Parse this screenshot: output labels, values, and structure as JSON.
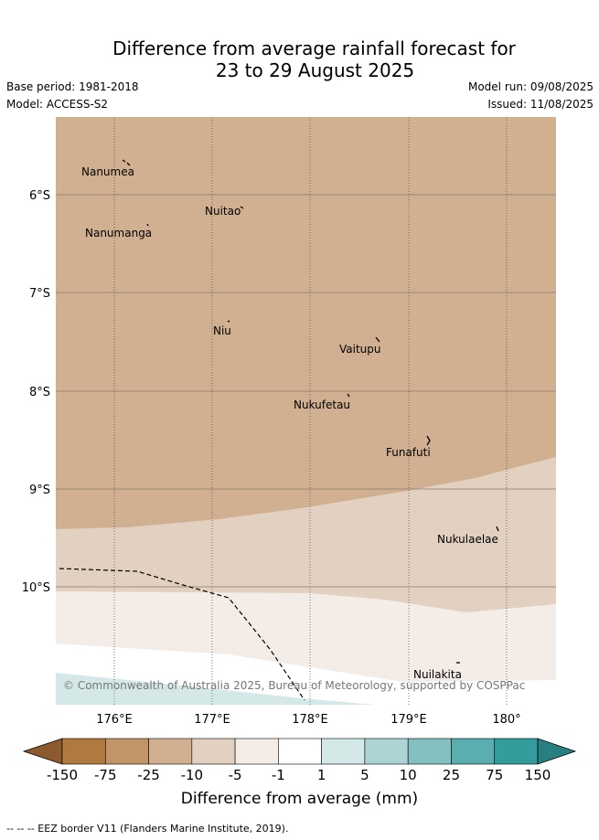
{
  "header": {
    "title_line1": "Difference from average rainfall forecast for",
    "title_line2": "23 to 29 August 2025",
    "base_period": "Base period: 1981-2018",
    "model": "Model: ACCESS-S2",
    "model_run": "Model run: 09/08/2025",
    "issued": "Issued: 11/08/2025"
  },
  "map": {
    "lat_labels": [
      "6°S",
      "7°S",
      "8°S",
      "9°S",
      "10°S"
    ],
    "lon_labels": [
      "176°E",
      "177°E",
      "178°E",
      "179°E",
      "180°"
    ],
    "places": [
      {
        "name": "Nanumea"
      },
      {
        "name": "Nuitao"
      },
      {
        "name": "Nanumanga"
      },
      {
        "name": "Niu"
      },
      {
        "name": "Vaitupu"
      },
      {
        "name": "Nukufetau"
      },
      {
        "name": "Funafuti"
      },
      {
        "name": "Nukulaelae"
      },
      {
        "name": "Nuilakita"
      }
    ],
    "copyright": "© Commonwealth of Australia 2025, Bureau of Meteorology, supported by COSPPac"
  },
  "colorbar": {
    "labels": [
      "-150",
      "-75",
      "-25",
      "-10",
      "-5",
      "-1",
      "1",
      "5",
      "10",
      "25",
      "75",
      "150"
    ],
    "colors": [
      "#8c5a2e",
      "#b07940",
      "#c29568",
      "#d1b091",
      "#e2d0c0",
      "#f4ece7",
      "#ffffff",
      "#d4e8e7",
      "#acd4d4",
      "#85c0c0",
      "#5aaeaf",
      "#339c9c",
      "#287f7f"
    ],
    "title": "Difference from average (mm)"
  },
  "footer": {
    "legend_line": "-- -- -- EEZ border V11 (Flanders Marine Institute, 2019)."
  }
}
